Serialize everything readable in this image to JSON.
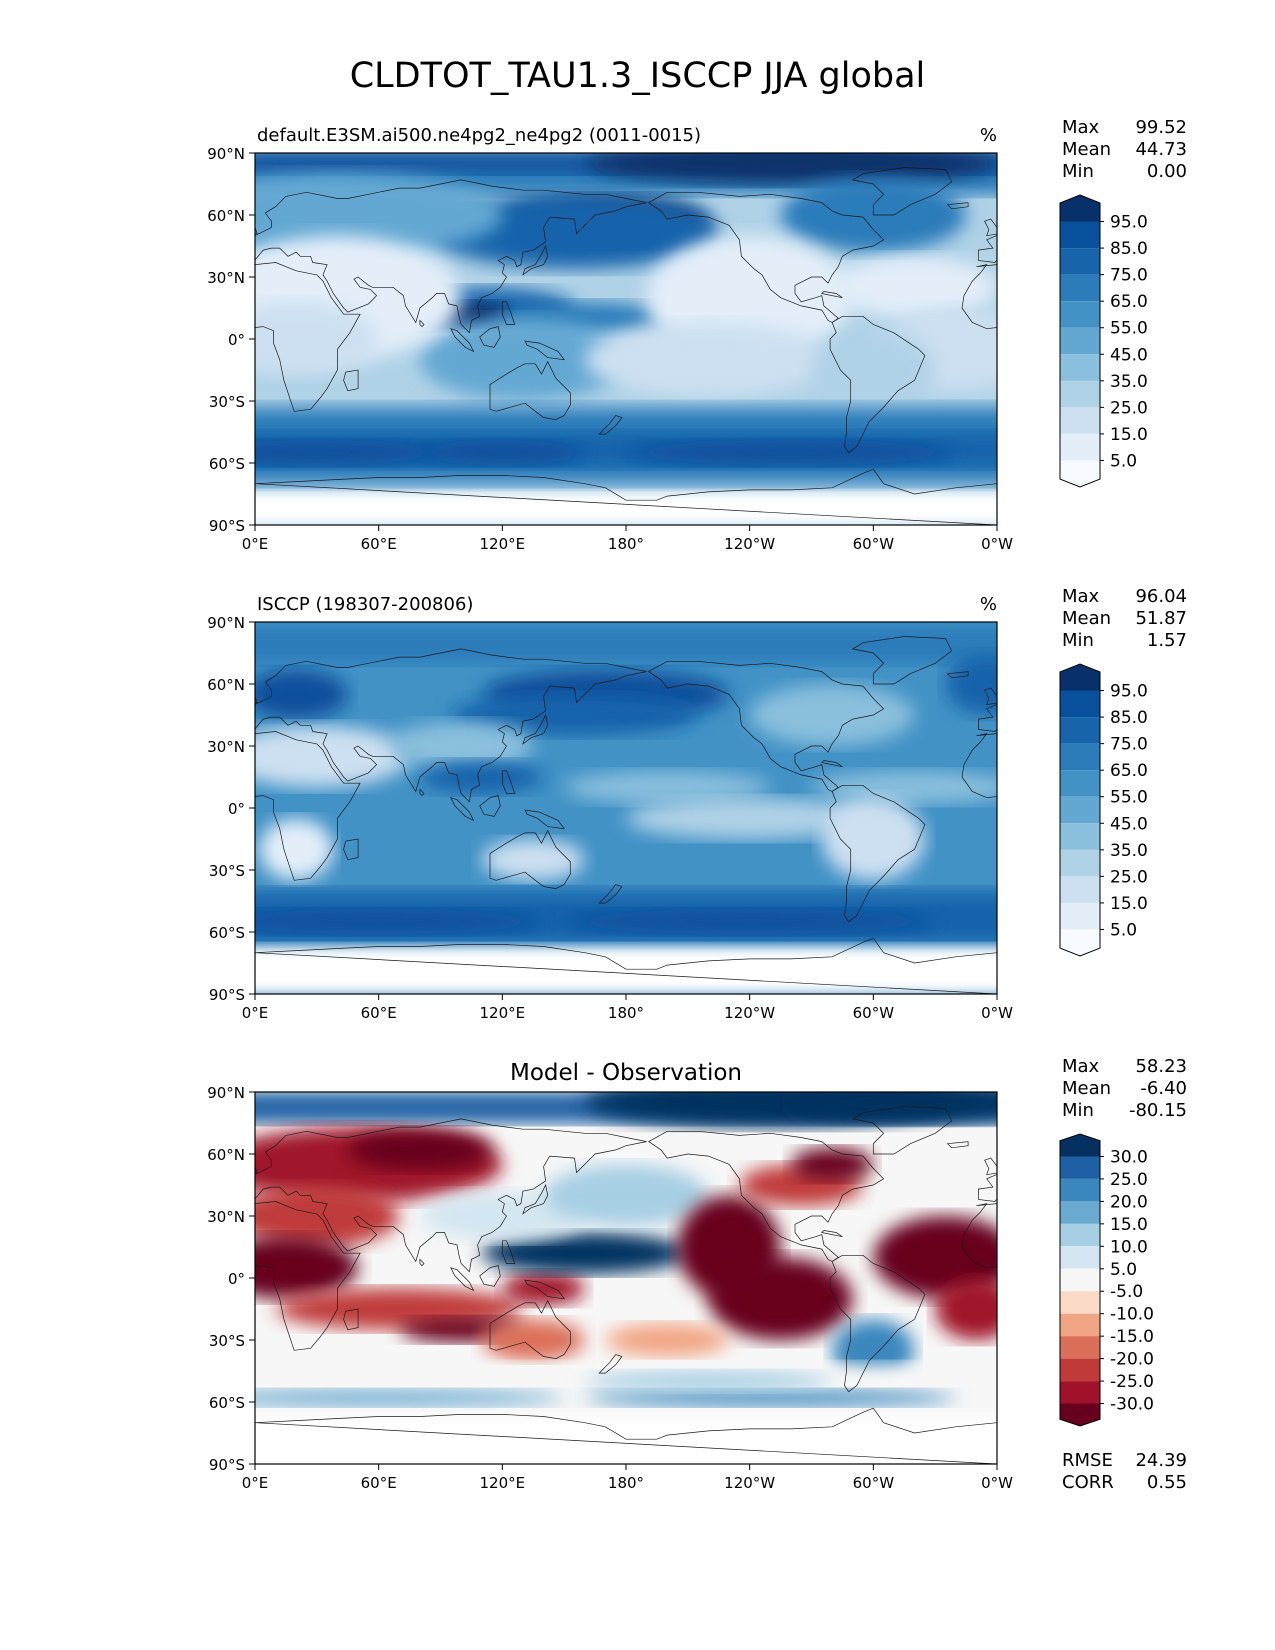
{
  "figure": {
    "title": "CLDTOT_TAU1.3_ISCCP JJA global"
  },
  "axis_ticks": {
    "lat": [
      "90°N",
      "60°N",
      "30°N",
      "0°",
      "30°S",
      "60°S",
      "90°S"
    ],
    "lon": [
      "0°E",
      "60°E",
      "120°E",
      "180°",
      "120°W",
      "60°W",
      "0°W"
    ]
  },
  "panels": [
    {
      "id": "model",
      "title_left": "default.E3SM.ai500.ne4pg2_ne4pg2 (0011-0015)",
      "title_center": "",
      "units": "%",
      "stats": {
        "labels": [
          "Max",
          "Mean",
          "Min"
        ],
        "values": [
          "99.52",
          "44.73",
          "0.00"
        ]
      },
      "colorbar": {
        "ticks": [
          "95.0",
          "85.0",
          "75.0",
          "65.0",
          "55.0",
          "45.0",
          "35.0",
          "25.0",
          "15.0",
          "5.0"
        ],
        "colors": [
          "#08306b",
          "#08509b",
          "#1764ab",
          "#2c7cba",
          "#4292c6",
          "#63a8d3",
          "#8abfdd",
          "#b0d2e7",
          "#cde0f1",
          "#e3eef9",
          "#f7fbff"
        ]
      },
      "footer": null
    },
    {
      "id": "obs",
      "title_left": "ISCCP (198307-200806)",
      "title_center": "",
      "units": "%",
      "stats": {
        "labels": [
          "Max",
          "Mean",
          "Min"
        ],
        "values": [
          "96.04",
          "51.87",
          "1.57"
        ]
      },
      "colorbar": {
        "ticks": [
          "95.0",
          "85.0",
          "75.0",
          "65.0",
          "55.0",
          "45.0",
          "35.0",
          "25.0",
          "15.0",
          "5.0"
        ],
        "colors": [
          "#08306b",
          "#08509b",
          "#1764ab",
          "#2c7cba",
          "#4292c6",
          "#63a8d3",
          "#8abfdd",
          "#b0d2e7",
          "#cde0f1",
          "#e3eef9",
          "#f7fbff"
        ]
      },
      "footer": null
    },
    {
      "id": "diff",
      "title_left": "",
      "title_center": "Model - Observation",
      "units": "",
      "stats": {
        "labels": [
          "Max",
          "Mean",
          "Min"
        ],
        "values": [
          "58.23",
          "-6.40",
          "-80.15"
        ]
      },
      "colorbar": {
        "ticks": [
          "30.0",
          "25.0",
          "20.0",
          "15.0",
          "10.0",
          "5.0",
          "-5.0",
          "-10.0",
          "-15.0",
          "-20.0",
          "-25.0",
          "-30.0"
        ],
        "colors": [
          "#053061",
          "#1f5fa3",
          "#3a87be",
          "#6aa9d0",
          "#a7cfe4",
          "#d4e6f1",
          "#f7f7f7",
          "#fbdbc8",
          "#f2a584",
          "#dc6f5a",
          "#c03a3a",
          "#a0122a",
          "#67001f"
        ]
      },
      "footer": {
        "labels": [
          "RMSE",
          "CORR"
        ],
        "values": [
          "24.39",
          "0.55"
        ]
      }
    }
  ],
  "map_colors": {
    "coast": "#1a1a1a",
    "antarctica_fill": "#ffffff"
  }
}
